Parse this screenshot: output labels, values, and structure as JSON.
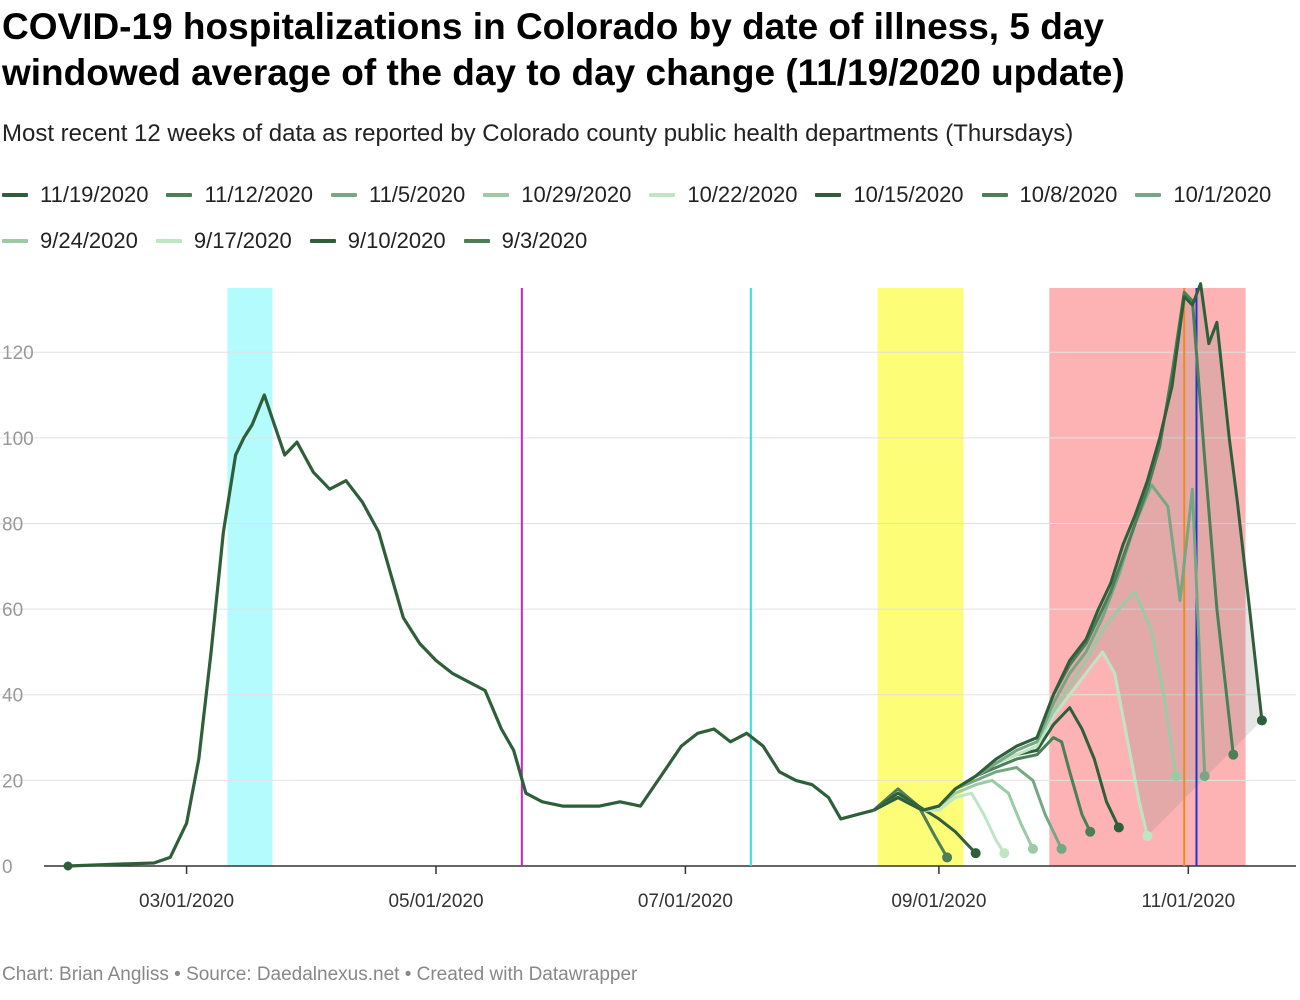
{
  "title": "COVID-19 hospitalizations in Colorado by date of illness, 5 day windowed average of the day to day change (11/19/2020 update)",
  "subtitle": "Most recent 12 weeks of data as reported by Colorado county public health departments (Thursdays)",
  "footer": "Chart: Brian Angliss • Source: Daedalnexus.net • Created with Datawrapper",
  "chart_data": {
    "type": "line",
    "ylim": [
      0,
      135
    ],
    "y_ticks": [
      0,
      20,
      40,
      60,
      80,
      100,
      120
    ],
    "x_range": [
      "2020-02-01",
      "2020-11-20"
    ],
    "x_ticks": [
      {
        "date": "2020-03-01",
        "label": "03/01/2020"
      },
      {
        "date": "2020-05-01",
        "label": "05/01/2020"
      },
      {
        "date": "2020-07-01",
        "label": "07/01/2020"
      },
      {
        "date": "2020-09-01",
        "label": "09/01/2020"
      },
      {
        "date": "2020-11-01",
        "label": "11/01/2020"
      }
    ],
    "grid": true,
    "legend_position": "top",
    "highlight_ranges": [
      {
        "from": "2020-03-11",
        "to": "2020-03-22",
        "color": "#b3fbfc"
      },
      {
        "from": "2020-08-17",
        "to": "2020-09-07",
        "color": "#fdfd78"
      },
      {
        "from": "2020-09-28",
        "to": "2020-11-15",
        "color": "#fdb3b3"
      }
    ],
    "vertical_lines": [
      {
        "date": "2020-05-22",
        "color": "#cc22cc"
      },
      {
        "date": "2020-07-17",
        "color": "#33dddd"
      },
      {
        "date": "2020-10-31",
        "color": "#ee8822"
      },
      {
        "date": "2020-11-03",
        "color": "#2233cc"
      }
    ],
    "shared_history": [
      {
        "x": "2020-02-01",
        "y": 0
      },
      {
        "x": "2020-02-15",
        "y": 0.5
      },
      {
        "x": "2020-02-22",
        "y": 0.7
      },
      {
        "x": "2020-02-26",
        "y": 2
      },
      {
        "x": "2020-03-01",
        "y": 10
      },
      {
        "x": "2020-03-04",
        "y": 25
      },
      {
        "x": "2020-03-07",
        "y": 50
      },
      {
        "x": "2020-03-10",
        "y": 78
      },
      {
        "x": "2020-03-13",
        "y": 96
      },
      {
        "x": "2020-03-15",
        "y": 100
      },
      {
        "x": "2020-03-17",
        "y": 103
      },
      {
        "x": "2020-03-20",
        "y": 110
      },
      {
        "x": "2020-03-25",
        "y": 96
      },
      {
        "x": "2020-03-28",
        "y": 99
      },
      {
        "x": "2020-04-01",
        "y": 92
      },
      {
        "x": "2020-04-05",
        "y": 88
      },
      {
        "x": "2020-04-09",
        "y": 90
      },
      {
        "x": "2020-04-13",
        "y": 85
      },
      {
        "x": "2020-04-17",
        "y": 78
      },
      {
        "x": "2020-04-20",
        "y": 68
      },
      {
        "x": "2020-04-23",
        "y": 58
      },
      {
        "x": "2020-04-27",
        "y": 52
      },
      {
        "x": "2020-05-01",
        "y": 48
      },
      {
        "x": "2020-05-05",
        "y": 45
      },
      {
        "x": "2020-05-09",
        "y": 43
      },
      {
        "x": "2020-05-13",
        "y": 41
      },
      {
        "x": "2020-05-17",
        "y": 32
      },
      {
        "x": "2020-05-20",
        "y": 27
      },
      {
        "x": "2020-05-23",
        "y": 17
      },
      {
        "x": "2020-05-27",
        "y": 15
      },
      {
        "x": "2020-06-01",
        "y": 14
      },
      {
        "x": "2020-06-05",
        "y": 14
      },
      {
        "x": "2020-06-10",
        "y": 14
      },
      {
        "x": "2020-06-15",
        "y": 15
      },
      {
        "x": "2020-06-20",
        "y": 14
      },
      {
        "x": "2020-06-25",
        "y": 21
      },
      {
        "x": "2020-06-30",
        "y": 28
      },
      {
        "x": "2020-07-04",
        "y": 31
      },
      {
        "x": "2020-07-08",
        "y": 32
      },
      {
        "x": "2020-07-12",
        "y": 29
      },
      {
        "x": "2020-07-16",
        "y": 31
      },
      {
        "x": "2020-07-20",
        "y": 28
      },
      {
        "x": "2020-07-24",
        "y": 22
      },
      {
        "x": "2020-07-28",
        "y": 20
      },
      {
        "x": "2020-08-01",
        "y": 19
      },
      {
        "x": "2020-08-05",
        "y": 16
      },
      {
        "x": "2020-08-08",
        "y": 11
      },
      {
        "x": "2020-08-12",
        "y": 12
      },
      {
        "x": "2020-08-16",
        "y": 13
      }
    ],
    "series": [
      {
        "name": "11/19/2020",
        "color": "#2e5f3a",
        "values": [
          {
            "x": "2020-08-16",
            "y": 13
          },
          {
            "x": "2020-08-22",
            "y": 16
          },
          {
            "x": "2020-08-28",
            "y": 13
          },
          {
            "x": "2020-09-01",
            "y": 14
          },
          {
            "x": "2020-09-05",
            "y": 18
          },
          {
            "x": "2020-09-10",
            "y": 21
          },
          {
            "x": "2020-09-15",
            "y": 25
          },
          {
            "x": "2020-09-20",
            "y": 28
          },
          {
            "x": "2020-09-25",
            "y": 30
          },
          {
            "x": "2020-09-29",
            "y": 40
          },
          {
            "x": "2020-10-03",
            "y": 48
          },
          {
            "x": "2020-10-07",
            "y": 53
          },
          {
            "x": "2020-10-10",
            "y": 60
          },
          {
            "x": "2020-10-13",
            "y": 66
          },
          {
            "x": "2020-10-16",
            "y": 75
          },
          {
            "x": "2020-10-19",
            "y": 82
          },
          {
            "x": "2020-10-22",
            "y": 90
          },
          {
            "x": "2020-10-25",
            "y": 100
          },
          {
            "x": "2020-10-28",
            "y": 112
          },
          {
            "x": "2020-10-31",
            "y": 133
          },
          {
            "x": "2020-11-02",
            "y": 131
          },
          {
            "x": "2020-11-04",
            "y": 136
          },
          {
            "x": "2020-11-06",
            "y": 122
          },
          {
            "x": "2020-11-08",
            "y": 127
          },
          {
            "x": "2020-11-11",
            "y": 100
          },
          {
            "x": "2020-11-13",
            "y": 85
          },
          {
            "x": "2020-11-16",
            "y": 60
          },
          {
            "x": "2020-11-19",
            "y": 34
          }
        ]
      },
      {
        "name": "11/12/2020",
        "color": "#4a7f57",
        "values": [
          {
            "x": "2020-08-16",
            "y": 13
          },
          {
            "x": "2020-08-22",
            "y": 16
          },
          {
            "x": "2020-08-28",
            "y": 13
          },
          {
            "x": "2020-09-01",
            "y": 14
          },
          {
            "x": "2020-09-05",
            "y": 18
          },
          {
            "x": "2020-09-10",
            "y": 21
          },
          {
            "x": "2020-09-15",
            "y": 25
          },
          {
            "x": "2020-09-20",
            "y": 28
          },
          {
            "x": "2020-09-25",
            "y": 30
          },
          {
            "x": "2020-09-29",
            "y": 40
          },
          {
            "x": "2020-10-03",
            "y": 47
          },
          {
            "x": "2020-10-07",
            "y": 52
          },
          {
            "x": "2020-10-10",
            "y": 58
          },
          {
            "x": "2020-10-13",
            "y": 64
          },
          {
            "x": "2020-10-16",
            "y": 72
          },
          {
            "x": "2020-10-19",
            "y": 80
          },
          {
            "x": "2020-10-22",
            "y": 88
          },
          {
            "x": "2020-10-25",
            "y": 98
          },
          {
            "x": "2020-10-28",
            "y": 115
          },
          {
            "x": "2020-10-31",
            "y": 134
          },
          {
            "x": "2020-11-02",
            "y": 132
          },
          {
            "x": "2020-11-05",
            "y": 95
          },
          {
            "x": "2020-11-08",
            "y": 60
          },
          {
            "x": "2020-11-12",
            "y": 26
          }
        ]
      },
      {
        "name": "11/5/2020",
        "color": "#76a784",
        "values": [
          {
            "x": "2020-08-16",
            "y": 13
          },
          {
            "x": "2020-08-22",
            "y": 16
          },
          {
            "x": "2020-08-28",
            "y": 13
          },
          {
            "x": "2020-09-01",
            "y": 14
          },
          {
            "x": "2020-09-05",
            "y": 18
          },
          {
            "x": "2020-09-10",
            "y": 21
          },
          {
            "x": "2020-09-15",
            "y": 24
          },
          {
            "x": "2020-09-20",
            "y": 27
          },
          {
            "x": "2020-09-25",
            "y": 29
          },
          {
            "x": "2020-09-29",
            "y": 38
          },
          {
            "x": "2020-10-03",
            "y": 45
          },
          {
            "x": "2020-10-07",
            "y": 50
          },
          {
            "x": "2020-10-11",
            "y": 58
          },
          {
            "x": "2020-10-15",
            "y": 68
          },
          {
            "x": "2020-10-19",
            "y": 80
          },
          {
            "x": "2020-10-23",
            "y": 89
          },
          {
            "x": "2020-10-27",
            "y": 84
          },
          {
            "x": "2020-10-30",
            "y": 62
          },
          {
            "x": "2020-11-02",
            "y": 88
          },
          {
            "x": "2020-11-05",
            "y": 21
          }
        ]
      },
      {
        "name": "10/29/2020",
        "color": "#9bcaa4",
        "values": [
          {
            "x": "2020-08-16",
            "y": 13
          },
          {
            "x": "2020-08-22",
            "y": 16
          },
          {
            "x": "2020-08-28",
            "y": 13
          },
          {
            "x": "2020-09-01",
            "y": 14
          },
          {
            "x": "2020-09-05",
            "y": 18
          },
          {
            "x": "2020-09-10",
            "y": 21
          },
          {
            "x": "2020-09-15",
            "y": 24
          },
          {
            "x": "2020-09-20",
            "y": 27
          },
          {
            "x": "2020-09-25",
            "y": 29
          },
          {
            "x": "2020-09-29",
            "y": 36
          },
          {
            "x": "2020-10-03",
            "y": 42
          },
          {
            "x": "2020-10-07",
            "y": 48
          },
          {
            "x": "2020-10-11",
            "y": 55
          },
          {
            "x": "2020-10-15",
            "y": 60
          },
          {
            "x": "2020-10-19",
            "y": 64
          },
          {
            "x": "2020-10-23",
            "y": 55
          },
          {
            "x": "2020-10-26",
            "y": 40
          },
          {
            "x": "2020-10-29",
            "y": 21
          }
        ]
      },
      {
        "name": "10/22/2020",
        "color": "#bfe6c4",
        "values": [
          {
            "x": "2020-08-16",
            "y": 13
          },
          {
            "x": "2020-08-22",
            "y": 16
          },
          {
            "x": "2020-08-28",
            "y": 13
          },
          {
            "x": "2020-09-01",
            "y": 14
          },
          {
            "x": "2020-09-05",
            "y": 18
          },
          {
            "x": "2020-09-10",
            "y": 21
          },
          {
            "x": "2020-09-15",
            "y": 24
          },
          {
            "x": "2020-09-20",
            "y": 26
          },
          {
            "x": "2020-09-25",
            "y": 28
          },
          {
            "x": "2020-09-29",
            "y": 35
          },
          {
            "x": "2020-10-03",
            "y": 40
          },
          {
            "x": "2020-10-07",
            "y": 45
          },
          {
            "x": "2020-10-11",
            "y": 50
          },
          {
            "x": "2020-10-14",
            "y": 45
          },
          {
            "x": "2020-10-17",
            "y": 30
          },
          {
            "x": "2020-10-20",
            "y": 15
          },
          {
            "x": "2020-10-22",
            "y": 7
          }
        ]
      },
      {
        "name": "10/15/2020",
        "color": "#2e5f3a",
        "values": [
          {
            "x": "2020-08-16",
            "y": 13
          },
          {
            "x": "2020-08-22",
            "y": 16
          },
          {
            "x": "2020-08-28",
            "y": 13
          },
          {
            "x": "2020-09-01",
            "y": 14
          },
          {
            "x": "2020-09-05",
            "y": 18
          },
          {
            "x": "2020-09-10",
            "y": 21
          },
          {
            "x": "2020-09-15",
            "y": 24
          },
          {
            "x": "2020-09-20",
            "y": 26
          },
          {
            "x": "2020-09-25",
            "y": 27
          },
          {
            "x": "2020-09-29",
            "y": 33
          },
          {
            "x": "2020-10-03",
            "y": 37
          },
          {
            "x": "2020-10-06",
            "y": 32
          },
          {
            "x": "2020-10-09",
            "y": 25
          },
          {
            "x": "2020-10-12",
            "y": 15
          },
          {
            "x": "2020-10-15",
            "y": 9
          }
        ]
      },
      {
        "name": "10/8/2020",
        "color": "#4a7f57",
        "values": [
          {
            "x": "2020-08-16",
            "y": 13
          },
          {
            "x": "2020-08-22",
            "y": 16
          },
          {
            "x": "2020-08-28",
            "y": 13
          },
          {
            "x": "2020-09-01",
            "y": 14
          },
          {
            "x": "2020-09-05",
            "y": 18
          },
          {
            "x": "2020-09-10",
            "y": 21
          },
          {
            "x": "2020-09-15",
            "y": 23
          },
          {
            "x": "2020-09-20",
            "y": 25
          },
          {
            "x": "2020-09-25",
            "y": 26
          },
          {
            "x": "2020-09-29",
            "y": 30
          },
          {
            "x": "2020-10-01",
            "y": 29
          },
          {
            "x": "2020-10-03",
            "y": 22
          },
          {
            "x": "2020-10-06",
            "y": 12
          },
          {
            "x": "2020-10-08",
            "y": 8
          }
        ]
      },
      {
        "name": "10/1/2020",
        "color": "#76a784",
        "values": [
          {
            "x": "2020-08-16",
            "y": 13
          },
          {
            "x": "2020-08-22",
            "y": 16
          },
          {
            "x": "2020-08-28",
            "y": 13
          },
          {
            "x": "2020-09-01",
            "y": 14
          },
          {
            "x": "2020-09-05",
            "y": 18
          },
          {
            "x": "2020-09-10",
            "y": 20
          },
          {
            "x": "2020-09-15",
            "y": 22
          },
          {
            "x": "2020-09-20",
            "y": 23
          },
          {
            "x": "2020-09-24",
            "y": 20
          },
          {
            "x": "2020-09-27",
            "y": 12
          },
          {
            "x": "2020-10-01",
            "y": 4
          }
        ]
      },
      {
        "name": "9/24/2020",
        "color": "#9bcaa4",
        "values": [
          {
            "x": "2020-08-16",
            "y": 13
          },
          {
            "x": "2020-08-22",
            "y": 16
          },
          {
            "x": "2020-08-28",
            "y": 13
          },
          {
            "x": "2020-09-01",
            "y": 14
          },
          {
            "x": "2020-09-05",
            "y": 17
          },
          {
            "x": "2020-09-10",
            "y": 19
          },
          {
            "x": "2020-09-14",
            "y": 20
          },
          {
            "x": "2020-09-18",
            "y": 17
          },
          {
            "x": "2020-09-21",
            "y": 10
          },
          {
            "x": "2020-09-24",
            "y": 4
          }
        ]
      },
      {
        "name": "9/17/2020",
        "color": "#bfe6c4",
        "values": [
          {
            "x": "2020-08-16",
            "y": 13
          },
          {
            "x": "2020-08-22",
            "y": 16
          },
          {
            "x": "2020-08-28",
            "y": 13
          },
          {
            "x": "2020-09-01",
            "y": 13
          },
          {
            "x": "2020-09-05",
            "y": 16
          },
          {
            "x": "2020-09-09",
            "y": 17
          },
          {
            "x": "2020-09-12",
            "y": 12
          },
          {
            "x": "2020-09-15",
            "y": 6
          },
          {
            "x": "2020-09-17",
            "y": 3
          }
        ]
      },
      {
        "name": "9/10/2020",
        "color": "#2e5f3a",
        "values": [
          {
            "x": "2020-08-16",
            "y": 13
          },
          {
            "x": "2020-08-22",
            "y": 17
          },
          {
            "x": "2020-08-27",
            "y": 14
          },
          {
            "x": "2020-09-01",
            "y": 11
          },
          {
            "x": "2020-09-05",
            "y": 8
          },
          {
            "x": "2020-09-08",
            "y": 5
          },
          {
            "x": "2020-09-10",
            "y": 3
          }
        ]
      },
      {
        "name": "9/3/2020",
        "color": "#4a7f57",
        "values": [
          {
            "x": "2020-08-16",
            "y": 13
          },
          {
            "x": "2020-08-22",
            "y": 18
          },
          {
            "x": "2020-08-27",
            "y": 14
          },
          {
            "x": "2020-08-31",
            "y": 7
          },
          {
            "x": "2020-09-03",
            "y": 2
          }
        ]
      }
    ]
  }
}
